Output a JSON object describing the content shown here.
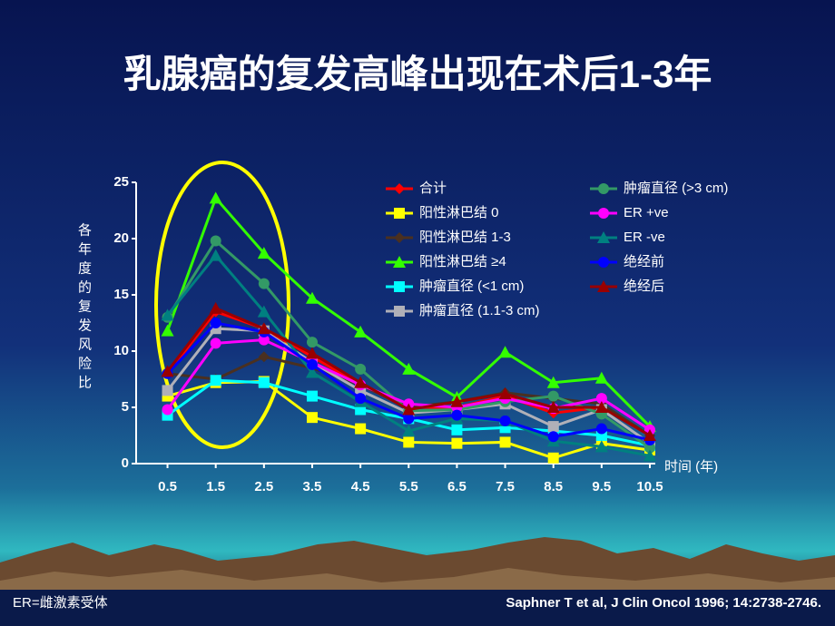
{
  "chart_data": {
    "type": "line",
    "title": "乳腺癌的复发高峰出现在术后1-3年",
    "y_label": "各年度的复发风险比",
    "x_label": "时间 (年)",
    "footnote_left": "ER=雌激素受体",
    "footnote_right": "Saphner T et al, J Clin Oncol 1996; 14:2738-2746.",
    "x": [
      0.5,
      1.5,
      2.5,
      3.5,
      4.5,
      5.5,
      6.5,
      7.5,
      8.5,
      9.5,
      10.5
    ],
    "xlim": [
      -0.15,
      10.5
    ],
    "xticks": [
      0.5,
      1.5,
      2.5,
      3.5,
      4.5,
      5.5,
      6.5,
      7.5,
      8.5,
      9.5,
      10.5
    ],
    "ylim": [
      0,
      25
    ],
    "yticks": [
      0,
      5,
      10,
      15,
      20,
      25
    ],
    "series": [
      {
        "name": "合计",
        "color": "#ff0000",
        "marker": "diamond",
        "values": [
          8,
          13.5,
          12,
          9.5,
          7,
          5,
          5,
          6,
          4.5,
          5,
          2.5
        ]
      },
      {
        "name": "阳性淋巴结 0",
        "color": "#ffff00",
        "marker": "square",
        "values": [
          6,
          7.2,
          7.3,
          4.1,
          3.1,
          1.9,
          1.8,
          1.9,
          0.5,
          1.8,
          1.2
        ]
      },
      {
        "name": "阳性淋巴结 1-3",
        "color": "#4a3020",
        "marker": "diamond",
        "values": [
          8,
          7.5,
          9.5,
          8.5,
          7,
          5,
          5.5,
          6.3,
          5.8,
          5.3,
          2.5
        ]
      },
      {
        "name": "阳性淋巴结 ≥4",
        "color": "#33ff00",
        "marker": "triangle",
        "values": [
          11.8,
          23.6,
          18.7,
          14.7,
          11.7,
          8.4,
          5.9,
          9.9,
          7.2,
          7.6,
          3.3
        ]
      },
      {
        "name": "肿瘤直径 (<1 cm)",
        "color": "#00ffff",
        "marker": "square",
        "values": [
          4.3,
          7.4,
          7.2,
          6,
          4.8,
          4,
          3,
          3.2,
          2.9,
          2.5,
          1.6
        ]
      },
      {
        "name": "肿瘤直径 (1.1-3 cm)",
        "color": "#b0b0b8",
        "marker": "square",
        "values": [
          6.5,
          12,
          11.8,
          9,
          6.5,
          4.5,
          4.8,
          5.3,
          3.3,
          4.8,
          1.8
        ]
      },
      {
        "name": "肿瘤直径 (>3 cm)",
        "color": "#339966",
        "marker": "circle",
        "values": [
          13,
          19.8,
          16,
          10.8,
          8.4,
          4.7,
          4.8,
          5.5,
          6,
          4.4,
          1.4
        ]
      },
      {
        "name": "ER +ve",
        "color": "#ff00ff",
        "marker": "circle",
        "values": [
          4.8,
          10.7,
          11,
          9,
          7,
          5.3,
          5,
          5.8,
          4.9,
          5.8,
          3
        ]
      },
      {
        "name": "ER -ve",
        "color": "#008080",
        "marker": "triangle",
        "values": [
          13.2,
          18.5,
          13.5,
          8.1,
          5.5,
          2.9,
          4,
          3.8,
          2,
          1.5,
          0.7
        ]
      },
      {
        "name": "绝经前",
        "color": "#0000ff",
        "marker": "circle",
        "values": [
          8,
          12.5,
          11.7,
          8.8,
          5.8,
          4,
          4.3,
          3.8,
          2.4,
          3.1,
          2.1
        ]
      },
      {
        "name": "绝经后",
        "color": "#990000",
        "marker": "triangle",
        "values": [
          8.2,
          13.8,
          12,
          9.8,
          7.2,
          4.8,
          5.5,
          6.2,
          5,
          5,
          2.5
        ]
      }
    ]
  }
}
